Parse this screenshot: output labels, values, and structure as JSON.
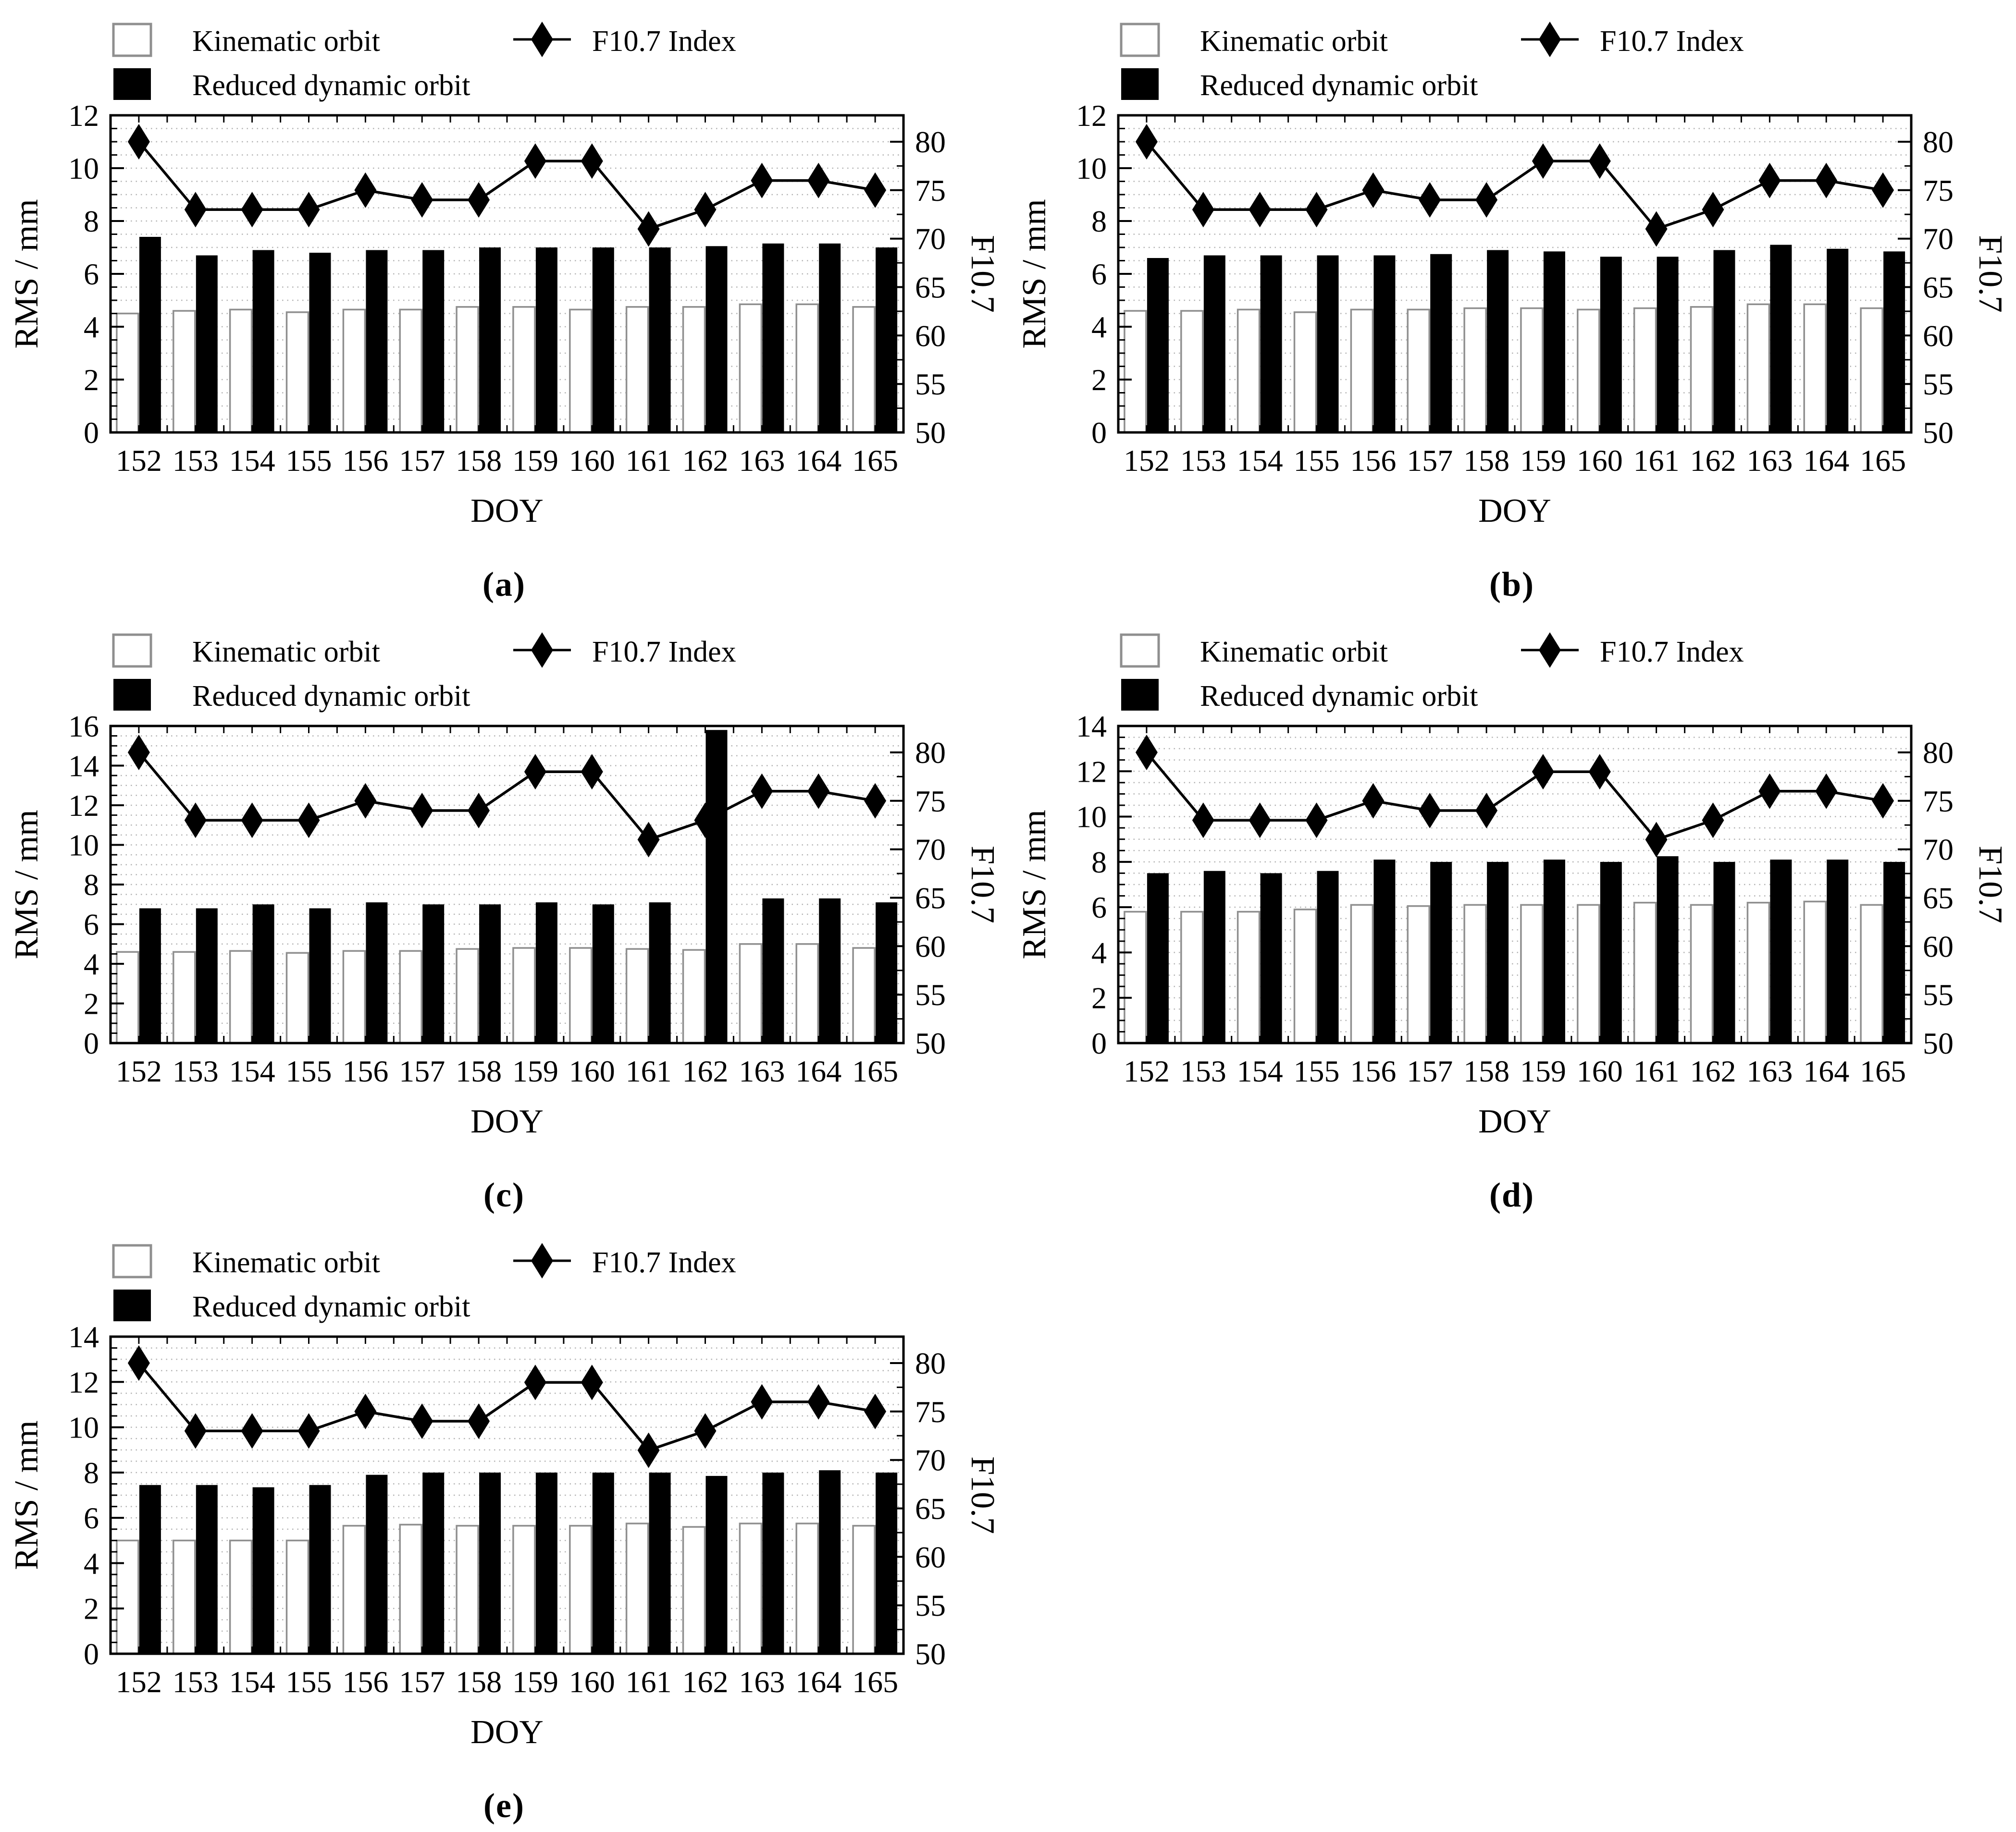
{
  "chart_data": {
    "type": "bar+line",
    "categories": [
      "152",
      "153",
      "154",
      "155",
      "156",
      "157",
      "158",
      "159",
      "160",
      "161",
      "162",
      "163",
      "164",
      "165"
    ],
    "xlabel": "DOY",
    "ylabel_left": "RMS / mm",
    "ylabel_right": "F10.7",
    "legend": {
      "kinematic_label": "Kinematic orbit",
      "reduced_label": "Reduced dynamic orbit",
      "f107_label": "F10.7 Index"
    },
    "right_axis": {
      "ticks": [
        50,
        55,
        60,
        65,
        70,
        75,
        80
      ],
      "min": 50,
      "max_tick": 80,
      "minor_step": 2.5
    },
    "grid": true,
    "legend_position": "top",
    "f107_series": {
      "name": "F10.7 Index",
      "values": [
        80,
        73,
        73,
        73,
        75,
        74,
        74,
        78,
        78,
        71,
        73,
        76,
        76,
        75
      ]
    },
    "panels": [
      {
        "id": "a",
        "label": "(a)",
        "ylim": [
          0,
          12
        ],
        "ytick_step": 2,
        "series": [
          {
            "name": "Kinematic orbit",
            "values": [
              4.5,
              4.6,
              4.65,
              4.55,
              4.65,
              4.65,
              4.75,
              4.75,
              4.65,
              4.75,
              4.75,
              4.85,
              4.85,
              4.75
            ]
          },
          {
            "name": "Reduced dynamic orbit",
            "values": [
              7.4,
              6.7,
              6.9,
              6.8,
              6.9,
              6.9,
              7.0,
              7.0,
              7.0,
              7.0,
              7.05,
              7.15,
              7.15,
              7.0
            ]
          }
        ]
      },
      {
        "id": "b",
        "label": "(b)",
        "ylim": [
          0,
          12
        ],
        "ytick_step": 2,
        "series": [
          {
            "name": "Kinematic orbit",
            "values": [
              4.6,
              4.6,
              4.65,
              4.55,
              4.65,
              4.65,
              4.7,
              4.7,
              4.65,
              4.7,
              4.75,
              4.85,
              4.85,
              4.7
            ]
          },
          {
            "name": "Reduced dynamic orbit",
            "values": [
              6.6,
              6.7,
              6.7,
              6.7,
              6.7,
              6.75,
              6.9,
              6.85,
              6.65,
              6.65,
              6.9,
              7.1,
              6.95,
              6.85
            ]
          }
        ]
      },
      {
        "id": "c",
        "label": "(c)",
        "ylim": [
          0,
          16
        ],
        "ytick_step": 2,
        "series": [
          {
            "name": "Kinematic orbit",
            "values": [
              4.6,
              4.6,
              4.65,
              4.55,
              4.65,
              4.65,
              4.75,
              4.8,
              4.8,
              4.75,
              4.7,
              5.0,
              5.0,
              4.8
            ]
          },
          {
            "name": "Reduced dynamic orbit",
            "values": [
              6.8,
              6.8,
              7.0,
              6.8,
              7.1,
              7.0,
              7.0,
              7.1,
              7.0,
              7.1,
              15.8,
              7.3,
              7.3,
              7.1
            ]
          }
        ]
      },
      {
        "id": "d",
        "label": "(d)",
        "ylim": [
          0,
          14
        ],
        "ytick_step": 2,
        "series": [
          {
            "name": "Kinematic orbit",
            "values": [
              5.8,
              5.8,
              5.8,
              5.9,
              6.1,
              6.05,
              6.1,
              6.1,
              6.1,
              6.2,
              6.1,
              6.2,
              6.25,
              6.1
            ]
          },
          {
            "name": "Reduced dynamic orbit",
            "values": [
              7.5,
              7.6,
              7.5,
              7.6,
              8.1,
              8.0,
              8.0,
              8.1,
              8.0,
              8.25,
              8.0,
              8.1,
              8.1,
              8.0
            ]
          }
        ]
      },
      {
        "id": "e",
        "label": "(e)",
        "ylim": [
          0,
          14
        ],
        "ytick_step": 2,
        "series": [
          {
            "name": "Kinematic orbit",
            "values": [
              5.0,
              5.0,
              5.0,
              5.0,
              5.65,
              5.7,
              5.65,
              5.65,
              5.65,
              5.75,
              5.6,
              5.75,
              5.75,
              5.65
            ]
          },
          {
            "name": "Reduced dynamic orbit",
            "values": [
              7.45,
              7.45,
              7.35,
              7.45,
              7.9,
              8.0,
              8.0,
              8.0,
              8.0,
              8.0,
              7.85,
              8.0,
              8.1,
              8.0
            ]
          }
        ]
      }
    ]
  },
  "colors": {
    "bar_reduced_fill": "#000000",
    "bar_kinematic_fill": "#ffffff",
    "bar_kinematic_stroke": "#8f8f8f",
    "line": "#000000",
    "grid": "#b3b3b3",
    "frame": "#000000",
    "text": "#000000",
    "background": "#ffffff"
  }
}
